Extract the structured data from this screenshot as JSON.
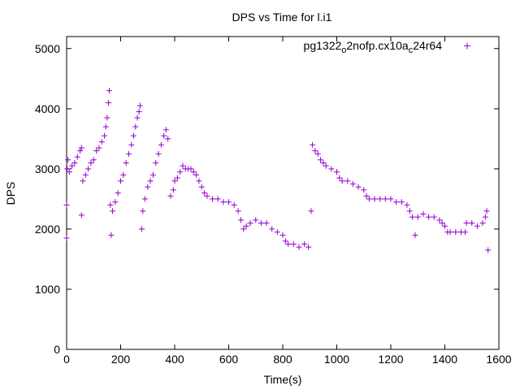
{
  "chart_data": {
    "type": "scatter",
    "title": "DPS vs Time for l.i1",
    "xlabel": "Time(s)",
    "ylabel": "DPS",
    "xlim": [
      0,
      1600
    ],
    "ylim": [
      0,
      5200
    ],
    "xticks": [
      0,
      200,
      400,
      600,
      800,
      1000,
      1200,
      1400,
      1600
    ],
    "yticks": [
      0,
      1000,
      2000,
      3000,
      4000,
      5000
    ],
    "grid": false,
    "legend": {
      "placement": "top-right",
      "label_parts": [
        "pg1322",
        "o",
        "2nofp.cx10a",
        "c",
        "24r64"
      ],
      "marker": "+"
    },
    "series": [
      {
        "name": "pg1322_o2nofp.cx10a_c24r64",
        "color": "#9400d3",
        "marker": "+",
        "points": [
          [
            0,
            2400
          ],
          [
            0,
            1850
          ],
          [
            2,
            3000
          ],
          [
            5,
            3150
          ],
          [
            10,
            2950
          ],
          [
            20,
            3050
          ],
          [
            30,
            3100
          ],
          [
            40,
            3200
          ],
          [
            50,
            3300
          ],
          [
            55,
            3350
          ],
          [
            55,
            2230
          ],
          [
            60,
            2800
          ],
          [
            70,
            2900
          ],
          [
            80,
            3000
          ],
          [
            90,
            3100
          ],
          [
            100,
            3150
          ],
          [
            110,
            3300
          ],
          [
            120,
            3350
          ],
          [
            130,
            3450
          ],
          [
            140,
            3550
          ],
          [
            145,
            3700
          ],
          [
            150,
            3850
          ],
          [
            155,
            4100
          ],
          [
            158,
            4300
          ],
          [
            162,
            2400
          ],
          [
            165,
            1900
          ],
          [
            170,
            2300
          ],
          [
            180,
            2450
          ],
          [
            190,
            2600
          ],
          [
            200,
            2800
          ],
          [
            210,
            2900
          ],
          [
            220,
            3100
          ],
          [
            230,
            3250
          ],
          [
            240,
            3400
          ],
          [
            248,
            3550
          ],
          [
            255,
            3700
          ],
          [
            262,
            3850
          ],
          [
            268,
            3950
          ],
          [
            272,
            4050
          ],
          [
            278,
            2000
          ],
          [
            282,
            2300
          ],
          [
            290,
            2500
          ],
          [
            300,
            2700
          ],
          [
            310,
            2800
          ],
          [
            320,
            2900
          ],
          [
            330,
            3100
          ],
          [
            340,
            3250
          ],
          [
            350,
            3400
          ],
          [
            360,
            3550
          ],
          [
            368,
            3650
          ],
          [
            375,
            3500
          ],
          [
            385,
            2550
          ],
          [
            395,
            2650
          ],
          [
            400,
            2800
          ],
          [
            410,
            2850
          ],
          [
            420,
            2950
          ],
          [
            430,
            3050
          ],
          [
            440,
            3000
          ],
          [
            450,
            3000
          ],
          [
            460,
            3000
          ],
          [
            470,
            2950
          ],
          [
            480,
            2900
          ],
          [
            490,
            2800
          ],
          [
            500,
            2700
          ],
          [
            510,
            2600
          ],
          [
            520,
            2550
          ],
          [
            540,
            2500
          ],
          [
            560,
            2500
          ],
          [
            580,
            2450
          ],
          [
            600,
            2450
          ],
          [
            620,
            2400
          ],
          [
            635,
            2300
          ],
          [
            645,
            2150
          ],
          [
            655,
            2000
          ],
          [
            665,
            2050
          ],
          [
            680,
            2100
          ],
          [
            700,
            2150
          ],
          [
            720,
            2100
          ],
          [
            740,
            2100
          ],
          [
            760,
            2000
          ],
          [
            780,
            1950
          ],
          [
            800,
            1900
          ],
          [
            810,
            1800
          ],
          [
            820,
            1750
          ],
          [
            840,
            1750
          ],
          [
            860,
            1700
          ],
          [
            880,
            1750
          ],
          [
            895,
            1700
          ],
          [
            905,
            2300
          ],
          [
            910,
            3400
          ],
          [
            920,
            3300
          ],
          [
            930,
            3250
          ],
          [
            940,
            3150
          ],
          [
            950,
            3100
          ],
          [
            960,
            3050
          ],
          [
            980,
            3000
          ],
          [
            1000,
            2950
          ],
          [
            1010,
            2850
          ],
          [
            1020,
            2800
          ],
          [
            1040,
            2800
          ],
          [
            1060,
            2750
          ],
          [
            1080,
            2700
          ],
          [
            1100,
            2650
          ],
          [
            1110,
            2550
          ],
          [
            1120,
            2500
          ],
          [
            1140,
            2500
          ],
          [
            1160,
            2500
          ],
          [
            1180,
            2500
          ],
          [
            1200,
            2500
          ],
          [
            1220,
            2450
          ],
          [
            1240,
            2450
          ],
          [
            1260,
            2400
          ],
          [
            1270,
            2300
          ],
          [
            1280,
            2200
          ],
          [
            1290,
            1900
          ],
          [
            1300,
            2200
          ],
          [
            1320,
            2250
          ],
          [
            1340,
            2200
          ],
          [
            1360,
            2200
          ],
          [
            1380,
            2150
          ],
          [
            1390,
            2100
          ],
          [
            1400,
            2050
          ],
          [
            1410,
            1950
          ],
          [
            1420,
            1950
          ],
          [
            1440,
            1950
          ],
          [
            1460,
            1950
          ],
          [
            1475,
            1950
          ],
          [
            1480,
            2100
          ],
          [
            1500,
            2100
          ],
          [
            1520,
            2050
          ],
          [
            1540,
            2100
          ],
          [
            1550,
            2200
          ],
          [
            1555,
            2300
          ],
          [
            1560,
            1650
          ]
        ]
      }
    ]
  }
}
